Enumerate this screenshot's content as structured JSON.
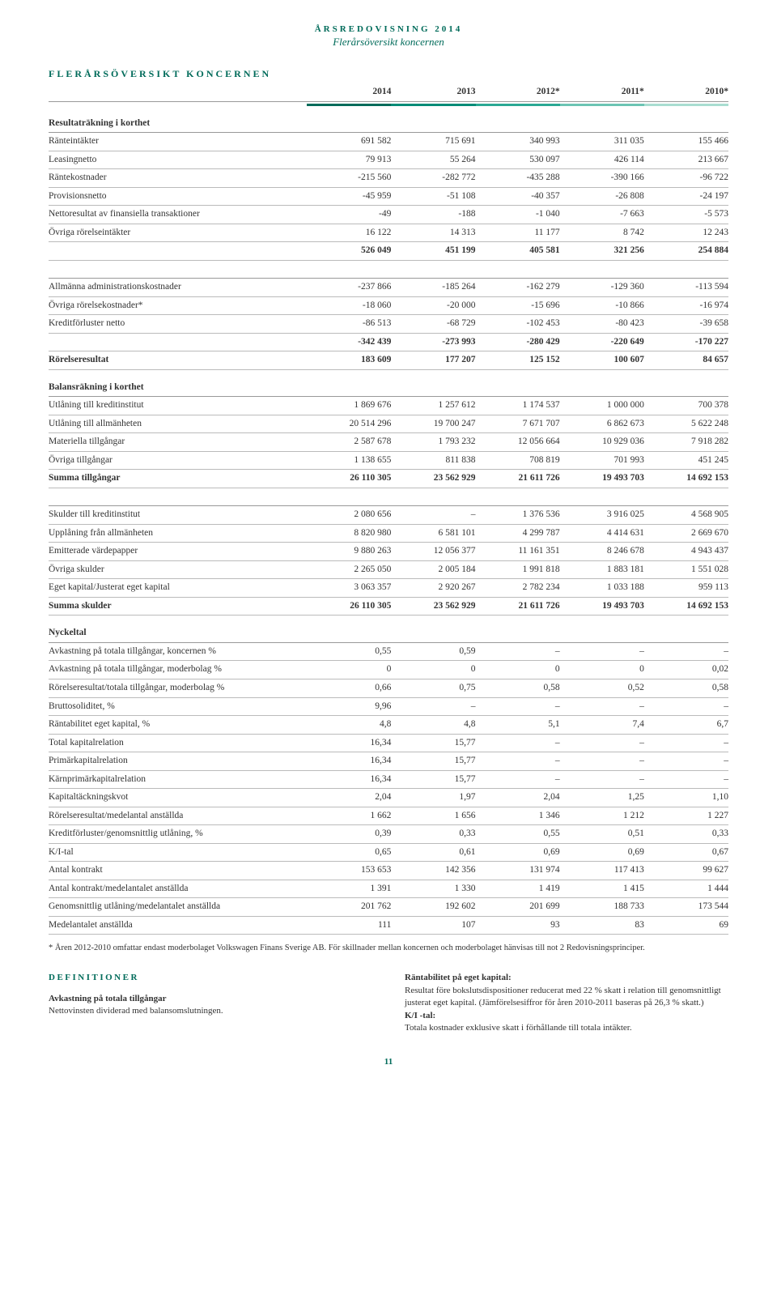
{
  "header": {
    "year": "ÅRSREDOVISNING 2014",
    "subtitle": "Flerårsöversikt koncernen"
  },
  "title": "FLERÅRSÖVERSIKT KONCERNEN",
  "cols": [
    "2014",
    "2013",
    "2012*",
    "2011*",
    "2010*"
  ],
  "header_colors": [
    "#006b5a",
    "#008b77",
    "#2aa893",
    "#6cc4b3",
    "#a9ddd1"
  ],
  "sections": {
    "resultat": {
      "head": "Resultaträkning i korthet",
      "rows": [
        {
          "l": "Ränteintäkter",
          "v": [
            "691 582",
            "715 691",
            "340 993",
            "311 035",
            "155 466"
          ]
        },
        {
          "l": "Leasingnetto",
          "v": [
            "79 913",
            "55 264",
            "530 097",
            "426 114",
            "213 667"
          ]
        },
        {
          "l": "Räntekostnader",
          "v": [
            "-215 560",
            "-282 772",
            "-435 288",
            "-390 166",
            "-96 722"
          ]
        },
        {
          "l": "Provisionsnetto",
          "v": [
            "-45 959",
            "-51 108",
            "-40 357",
            "-26 808",
            "-24 197"
          ]
        },
        {
          "l": "Nettoresultat av finansiella transaktioner",
          "v": [
            "-49",
            "-188",
            "-1 040",
            "-7 663",
            "-5 573"
          ]
        },
        {
          "l": "Övriga rörelseintäkter",
          "v": [
            "16 122",
            "14 313",
            "11 177",
            "8 742",
            "12 243"
          ]
        },
        {
          "l": "",
          "v": [
            "526 049",
            "451 199",
            "405 581",
            "321 256",
            "254 884"
          ],
          "bold": true
        }
      ],
      "rows2": [
        {
          "l": "Allmänna administrationskostnader",
          "v": [
            "-237 866",
            "-185 264",
            "-162 279",
            "-129 360",
            "-113 594"
          ]
        },
        {
          "l": "Övriga rörelsekostnader*",
          "v": [
            "-18 060",
            "-20 000",
            "-15 696",
            "-10 866",
            "-16 974"
          ]
        },
        {
          "l": "Kreditförluster netto",
          "v": [
            "-86 513",
            "-68 729",
            "-102 453",
            "-80 423",
            "-39 658"
          ]
        },
        {
          "l": "",
          "v": [
            "-342 439",
            "-273 993",
            "-280 429",
            "-220 649",
            "-170 227"
          ],
          "bold": true
        },
        {
          "l": "Rörelseresultat",
          "v": [
            "183 609",
            "177 207",
            "125 152",
            "100 607",
            "84 657"
          ],
          "bold": true
        }
      ]
    },
    "balans": {
      "head": "Balansräkning i korthet",
      "rows": [
        {
          "l": "Utlåning till kreditinstitut",
          "v": [
            "1 869 676",
            "1 257 612",
            "1 174 537",
            "1 000 000",
            "700 378"
          ]
        },
        {
          "l": "Utlåning till allmänheten",
          "v": [
            "20 514 296",
            "19 700 247",
            "7 671 707",
            "6 862 673",
            "5 622 248"
          ]
        },
        {
          "l": "Materiella tillgångar",
          "v": [
            "2 587 678",
            "1 793 232",
            "12 056 664",
            "10 929 036",
            "7 918 282"
          ]
        },
        {
          "l": "Övriga tillgångar",
          "v": [
            "1 138 655",
            "811 838",
            "708 819",
            "701 993",
            "451 245"
          ]
        },
        {
          "l": "Summa tillgångar",
          "v": [
            "26 110 305",
            "23 562 929",
            "21 611 726",
            "19 493 703",
            "14 692 153"
          ],
          "bold": true
        }
      ],
      "rows2": [
        {
          "l": "Skulder till kreditinstitut",
          "v": [
            "2 080 656",
            "–",
            "1 376 536",
            "3 916 025",
            "4 568 905"
          ]
        },
        {
          "l": "Upplåning från allmänheten",
          "v": [
            "8 820 980",
            "6 581 101",
            "4 299 787",
            "4 414 631",
            "2 669 670"
          ]
        },
        {
          "l": "Emitterade värdepapper",
          "v": [
            "9 880 263",
            "12 056 377",
            "11 161 351",
            "8 246 678",
            "4 943 437"
          ]
        },
        {
          "l": "Övriga skulder",
          "v": [
            "2 265 050",
            "2 005 184",
            "1 991 818",
            "1 883 181",
            "1 551 028"
          ]
        },
        {
          "l": "Eget kapital/Justerat eget kapital",
          "v": [
            "3 063 357",
            "2 920 267",
            "2 782 234",
            "1 033 188",
            "959 113"
          ]
        },
        {
          "l": "Summa skulder",
          "v": [
            "26 110 305",
            "23 562 929",
            "21 611 726",
            "19 493 703",
            "14 692 153"
          ],
          "bold": true
        }
      ]
    },
    "nyckeltal": {
      "head": "Nyckeltal",
      "rows": [
        {
          "l": "Avkastning på totala tillgångar, koncernen %",
          "v": [
            "0,55",
            "0,59",
            "–",
            "–",
            "–"
          ]
        },
        {
          "l": "Avkastning på totala tillgångar, moderbolag %",
          "v": [
            "0",
            "0",
            "0",
            "0",
            "0,02"
          ]
        },
        {
          "l": "Rörelseresultat/totala tillgångar, moderbolag %",
          "v": [
            "0,66",
            "0,75",
            "0,58",
            "0,52",
            "0,58"
          ]
        },
        {
          "l": "Bruttosoliditet, %",
          "v": [
            "9,96",
            "–",
            "–",
            "–",
            "–"
          ]
        },
        {
          "l": "Räntabilitet eget kapital, %",
          "v": [
            "4,8",
            "4,8",
            "5,1",
            "7,4",
            "6,7"
          ]
        },
        {
          "l": "Total kapitalrelation",
          "v": [
            "16,34",
            "15,77",
            "–",
            "–",
            "–"
          ]
        },
        {
          "l": "Primärkapitalrelation",
          "v": [
            "16,34",
            "15,77",
            "–",
            "–",
            "–"
          ]
        },
        {
          "l": "Kärnprimärkapitalrelation",
          "v": [
            "16,34",
            "15,77",
            "–",
            "–",
            "–"
          ]
        },
        {
          "l": "Kapitaltäckningskvot",
          "v": [
            "2,04",
            "1,97",
            "2,04",
            "1,25",
            "1,10"
          ]
        },
        {
          "l": "Rörelseresultat/medelantal anställda",
          "v": [
            "1 662",
            "1 656",
            "1 346",
            "1 212",
            "1 227"
          ]
        },
        {
          "l": "Kreditförluster/genomsnittlig utlåning, %",
          "v": [
            "0,39",
            "0,33",
            "0,55",
            "0,51",
            "0,33"
          ]
        },
        {
          "l": "K/I-tal",
          "v": [
            "0,65",
            "0,61",
            "0,69",
            "0,69",
            "0,67"
          ]
        },
        {
          "l": "Antal kontrakt",
          "v": [
            "153 653",
            "142 356",
            "131 974",
            "117 413",
            "99 627"
          ]
        },
        {
          "l": "Antal kontrakt/medelantalet anställda",
          "v": [
            "1 391",
            "1 330",
            "1 419",
            "1 415",
            "1 444"
          ]
        },
        {
          "l": "Genomsnittlig utlåning/medelantalet anställda",
          "v": [
            "201 762",
            "192 602",
            "201 699",
            "188 733",
            "173 544"
          ]
        },
        {
          "l": "Medelantalet anställda",
          "v": [
            "111",
            "107",
            "93",
            "83",
            "69"
          ]
        }
      ]
    }
  },
  "footnote": "* Åren 2012-2010 omfattar endast moderbolaget Volkswagen Finans Sverige AB. För skillnader mellan koncernen och moderbolaget hänvisas till not 2 Redovisningsprinciper.",
  "defs": {
    "title": "DEFINITIONER",
    "left": {
      "h": "Avkastning på totala tillgångar",
      "t": "Nettovinsten dividerad med balansomslutningen."
    },
    "right": {
      "h": "Räntabilitet på eget kapital:",
      "t": "Resultat före bokslutsdispositioner reducerat med 22 % skatt i relation till genomsnittligt justerat eget kapital. (Jämförelsesiffror för åren 2010-2011 baseras på 26,3 % skatt.)",
      "h2": "K/I -tal:",
      "t2": "Totala kostnader exklusive skatt i förhållande till totala intäkter."
    }
  },
  "page": "11"
}
